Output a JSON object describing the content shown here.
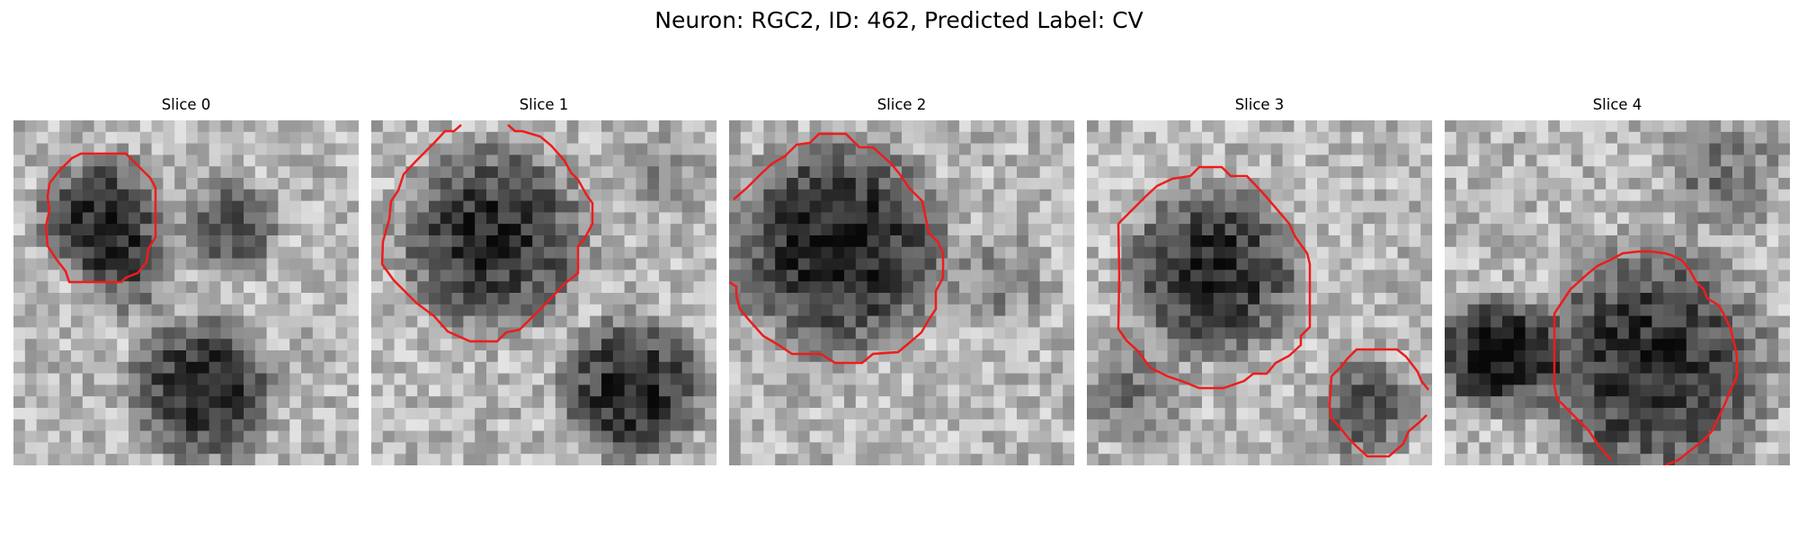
{
  "figure": {
    "title": "Neuron: RGC2, ID: 462, Predicted Label: CV"
  },
  "panels": [
    {
      "title": "Slice 0"
    },
    {
      "title": "Slice 1"
    },
    {
      "title": "Slice 2"
    },
    {
      "title": "Slice 3"
    },
    {
      "title": "Slice 4"
    }
  ],
  "colors": {
    "contour": "#ee1c1c",
    "background": "#ffffff"
  }
}
